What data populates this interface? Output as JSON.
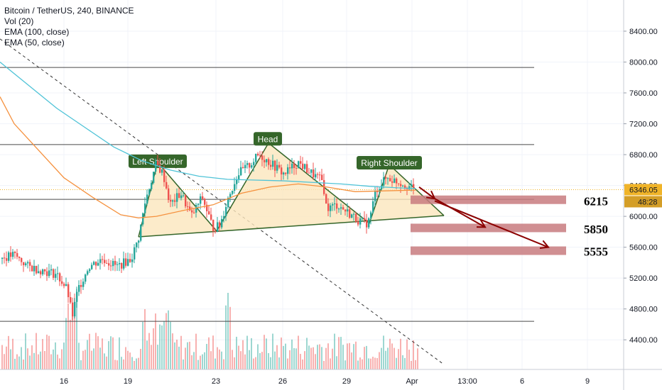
{
  "legend": {
    "symbol": "Bitcoin / TetherUS, 240, BINANCE",
    "vol": "Vol (20)",
    "ema100": "EMA (100, close)",
    "ema50": "EMA (50, close)"
  },
  "chart_data": {
    "type": "candlestick",
    "price_axis": {
      "ticks": [
        "8400.00",
        "8000.00",
        "7600.00",
        "7200.00",
        "6800.00",
        "6400.00",
        "6000.00",
        "5600.00",
        "5200.00",
        "4800.00",
        "4400.00"
      ],
      "range": [
        4100,
        8800
      ]
    },
    "time_axis": {
      "ticks": [
        "16",
        "19",
        "23",
        "26",
        "29",
        "Apr",
        "13:00",
        "6",
        "9"
      ]
    },
    "current_price": {
      "label": "6346.05",
      "value": 6346.05,
      "countdown": "48:28"
    },
    "horizontal_levels": [
      7930,
      6930,
      6220,
      4640
    ],
    "pattern_labels": [
      {
        "text": "Left Shoulder",
        "price": 6710
      },
      {
        "text": "Head",
        "price": 7000
      },
      {
        "text": "Right Shoulder",
        "price": 6690
      }
    ],
    "target_levels": [
      {
        "label": "6215",
        "value": 6215
      },
      {
        "label": "5850",
        "value": 5850
      },
      {
        "label": "5555",
        "value": 5555
      }
    ],
    "colors": {
      "up": "#26a69a",
      "down": "#ef5350",
      "ema100": "#4fc3d7",
      "ema50": "#f5913e",
      "pattern_fill": "#fbe6bd",
      "pattern_line": "#35662a",
      "label_bg": "#35662a",
      "target_zone": "#c87b7f",
      "arrow": "#8b0000",
      "price_tag": "#f0b429"
    }
  }
}
